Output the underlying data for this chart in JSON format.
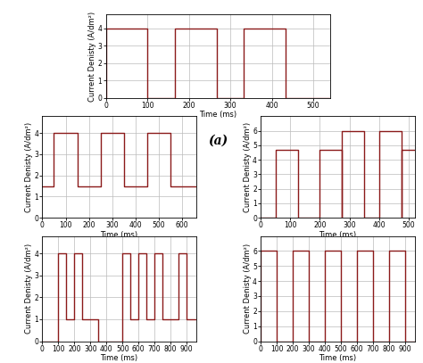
{
  "line_color": "#8B1A1A",
  "line_width": 1.0,
  "grid_color": "#bbbbbb",
  "label_fontsize": 6.0,
  "tick_fontsize": 5.5,
  "subplot_label_fontsize": 10,
  "ylabel": "Current Denisty (A/dm²)",
  "xlabel": "Time (ms)",
  "subplots": {
    "a": {
      "xlim": [
        0,
        540
      ],
      "ylim": [
        0,
        4.8
      ],
      "yticks": [
        0,
        1,
        2,
        3,
        4
      ],
      "xticks": [
        0,
        100,
        200,
        300,
        400,
        500
      ],
      "segments": [
        [
          0,
          0
        ],
        [
          0,
          4
        ],
        [
          100,
          4
        ],
        [
          100,
          0
        ],
        [
          167,
          0
        ],
        [
          167,
          4
        ],
        [
          267,
          4
        ],
        [
          267,
          0
        ],
        [
          333,
          0
        ],
        [
          333,
          4
        ],
        [
          433,
          4
        ],
        [
          433,
          0
        ],
        [
          540,
          0
        ]
      ]
    },
    "b": {
      "xlim": [
        0,
        660
      ],
      "ylim": [
        0,
        4.8
      ],
      "yticks": [
        0,
        1,
        2,
        3,
        4
      ],
      "xticks": [
        0,
        100,
        200,
        300,
        400,
        500,
        600
      ],
      "segments": [
        [
          0,
          1.5
        ],
        [
          50,
          1.5
        ],
        [
          50,
          4
        ],
        [
          150,
          4
        ],
        [
          150,
          1.5
        ],
        [
          250,
          1.5
        ],
        [
          250,
          4
        ],
        [
          350,
          4
        ],
        [
          350,
          1.5
        ],
        [
          450,
          1.5
        ],
        [
          450,
          4
        ],
        [
          550,
          4
        ],
        [
          550,
          1.5
        ],
        [
          660,
          1.5
        ]
      ]
    },
    "c": {
      "xlim": [
        0,
        520
      ],
      "ylim": [
        0,
        7.0
      ],
      "yticks": [
        0,
        1,
        2,
        3,
        4,
        5,
        6
      ],
      "xticks": [
        0,
        100,
        200,
        300,
        400,
        500
      ],
      "segments": [
        [
          0,
          0
        ],
        [
          50,
          0
        ],
        [
          50,
          4.7
        ],
        [
          125,
          4.7
        ],
        [
          125,
          0
        ],
        [
          200,
          0
        ],
        [
          200,
          4.7
        ],
        [
          275,
          4.7
        ],
        [
          275,
          0
        ],
        [
          275,
          0
        ],
        [
          275,
          6
        ],
        [
          350,
          6
        ],
        [
          350,
          0
        ],
        [
          400,
          0
        ],
        [
          400,
          6
        ],
        [
          475,
          6
        ],
        [
          475,
          0
        ],
        [
          475,
          0
        ],
        [
          475,
          4.7
        ],
        [
          520,
          4.7
        ]
      ]
    },
    "d": {
      "xlim": [
        0,
        960
      ],
      "ylim": [
        0,
        4.8
      ],
      "yticks": [
        0,
        1,
        2,
        3,
        4
      ],
      "xticks": [
        0,
        100,
        200,
        300,
        400,
        500,
        600,
        700,
        800,
        900
      ],
      "segments": [
        [
          0,
          0
        ],
        [
          100,
          0
        ],
        [
          100,
          4
        ],
        [
          150,
          4
        ],
        [
          150,
          1
        ],
        [
          200,
          1
        ],
        [
          200,
          4
        ],
        [
          250,
          4
        ],
        [
          250,
          1
        ],
        [
          350,
          1
        ],
        [
          350,
          0
        ],
        [
          500,
          0
        ],
        [
          500,
          4
        ],
        [
          550,
          4
        ],
        [
          550,
          1
        ],
        [
          600,
          1
        ],
        [
          600,
          4
        ],
        [
          650,
          4
        ],
        [
          650,
          1
        ],
        [
          700,
          1
        ],
        [
          700,
          4
        ],
        [
          750,
          4
        ],
        [
          750,
          1
        ],
        [
          850,
          1
        ],
        [
          850,
          4
        ],
        [
          900,
          4
        ],
        [
          900,
          1
        ],
        [
          960,
          1
        ]
      ]
    },
    "e": {
      "xlim": [
        0,
        960
      ],
      "ylim": [
        0,
        7.0
      ],
      "yticks": [
        0,
        1,
        2,
        3,
        4,
        5,
        6
      ],
      "xticks": [
        0,
        100,
        200,
        300,
        400,
        500,
        600,
        700,
        800,
        900
      ],
      "segments": [
        [
          0,
          0
        ],
        [
          0,
          6
        ],
        [
          100,
          6
        ],
        [
          100,
          0
        ],
        [
          200,
          0
        ],
        [
          200,
          6
        ],
        [
          300,
          6
        ],
        [
          300,
          0
        ],
        [
          400,
          0
        ],
        [
          400,
          6
        ],
        [
          500,
          6
        ],
        [
          500,
          0
        ],
        [
          600,
          0
        ],
        [
          600,
          6
        ],
        [
          700,
          6
        ],
        [
          700,
          0
        ],
        [
          800,
          0
        ],
        [
          800,
          6
        ],
        [
          900,
          6
        ],
        [
          900,
          0
        ],
        [
          960,
          0
        ]
      ]
    }
  }
}
